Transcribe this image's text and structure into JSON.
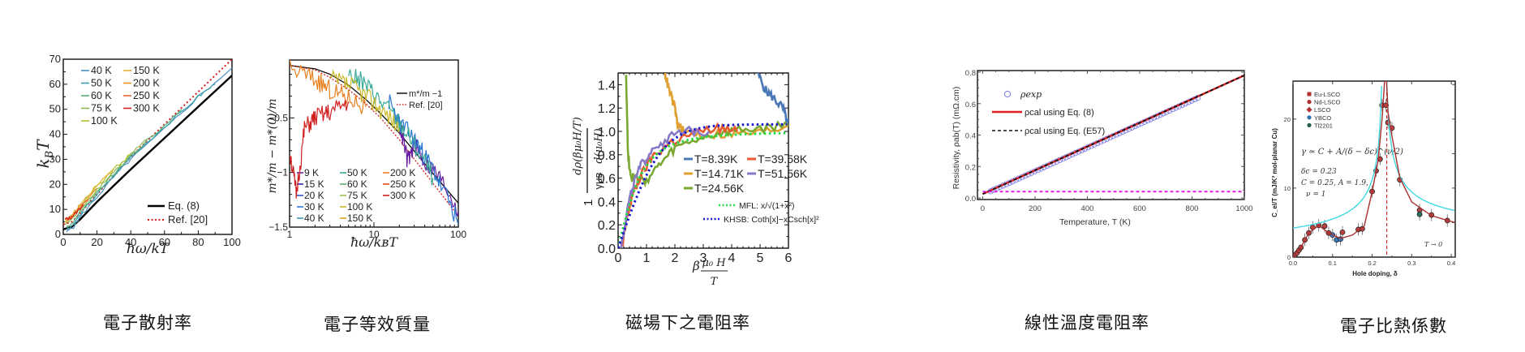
{
  "captions": [
    "電子散射率",
    "電子等效質量",
    "磁場下之電阻率",
    "線性溫度電阻率",
    "電子比熱係數"
  ],
  "chart_data": [
    {
      "type": "line",
      "id": "scattering-rate",
      "title": "",
      "xlabel": "ħω/k_BT",
      "ylabel": "k_BT",
      "xlim": [
        0,
        100
      ],
      "ylim": [
        0,
        70
      ],
      "xticks": [
        0,
        20,
        40,
        60,
        80,
        100
      ],
      "yticks": [
        0,
        10,
        20,
        30,
        40,
        50,
        60,
        70
      ],
      "legend_top_left": [
        {
          "name": "40 K",
          "color": "#4a8fc0"
        },
        {
          "name": "50 K",
          "color": "#3aa0a8"
        },
        {
          "name": "60 K",
          "color": "#5aae7a"
        },
        {
          "name": "75 K",
          "color": "#8cb84a"
        },
        {
          "name": "100 K",
          "color": "#b8c030"
        },
        {
          "name": "150 K",
          "color": "#e0b030"
        },
        {
          "name": "200 K",
          "color": "#e89020"
        },
        {
          "name": "250 K",
          "color": "#e06a30"
        },
        {
          "name": "300 K",
          "color": "#d42020"
        }
      ],
      "legend_bottom_right": [
        {
          "name": "Eq. (8)",
          "color": "#000000",
          "style": "solid"
        },
        {
          "name": "Ref. [20]",
          "color": "#d42020",
          "style": "dotted"
        }
      ],
      "series": [
        {
          "name": "Eq. (8)",
          "x": [
            0,
            5,
            10,
            20,
            30,
            40,
            60,
            80,
            100
          ],
          "y": [
            2,
            3,
            6,
            13,
            19.5,
            26,
            38.5,
            51,
            63.5
          ]
        },
        {
          "name": "Ref. [20]",
          "x": [
            0,
            5,
            10,
            20,
            30,
            40,
            60,
            80,
            100
          ],
          "y": [
            4,
            5,
            8.5,
            16,
            23.5,
            31,
            44,
            57,
            70
          ]
        },
        {
          "name": "40 K",
          "x": [
            2,
            6,
            10,
            20,
            30,
            40,
            60,
            80,
            100
          ],
          "y": [
            1,
            3,
            7,
            15,
            23,
            30,
            42,
            55,
            66.5
          ]
        },
        {
          "name": "50 K",
          "x": [
            2,
            6,
            10,
            20,
            30,
            40,
            60,
            80,
            90
          ],
          "y": [
            2,
            4,
            8,
            16,
            23.5,
            31,
            43,
            55,
            60
          ]
        },
        {
          "name": "60 K",
          "x": [
            2,
            6,
            10,
            20,
            30,
            40,
            60,
            70
          ],
          "y": [
            3,
            5,
            9,
            17,
            24,
            31.5,
            43.5,
            50
          ]
        },
        {
          "name": "75 K",
          "x": [
            1,
            5,
            10,
            20,
            30,
            40,
            50
          ],
          "y": [
            4,
            6,
            10,
            18,
            25,
            32,
            38
          ]
        },
        {
          "name": "100 K",
          "x": [
            1,
            5,
            10,
            20,
            30,
            40
          ],
          "y": [
            5,
            7,
            11,
            19,
            26,
            32
          ]
        },
        {
          "name": "150 K",
          "x": [
            1,
            5,
            10,
            20,
            30
          ],
          "y": [
            5,
            7.5,
            12,
            20,
            26
          ]
        },
        {
          "name": "200 K",
          "x": [
            1,
            5,
            10,
            20
          ],
          "y": [
            5.5,
            7,
            11,
            18.5
          ]
        },
        {
          "name": "250 K",
          "x": [
            1,
            5,
            10,
            15
          ],
          "y": [
            6,
            7,
            10.5,
            14
          ]
        },
        {
          "name": "300 K",
          "x": [
            1,
            4,
            8,
            12
          ],
          "y": [
            6,
            6.5,
            9,
            12
          ]
        }
      ]
    },
    {
      "type": "line",
      "id": "effective-mass",
      "title": "",
      "xlabel": "ħω/k_BT",
      "ylabel": "m*/m − m*(0)/m",
      "xscale": "log",
      "xlim": [
        1,
        100
      ],
      "ylim": [
        -1.5,
        0
      ],
      "xticks": [
        1,
        10,
        100
      ],
      "yticks": [
        -0.5,
        -1,
        -1.5
      ],
      "legend_bottom_left": [
        {
          "name": "9 K",
          "color": "#6a1fa0"
        },
        {
          "name": "15 K",
          "color": "#2a2aa8"
        },
        {
          "name": "20 K",
          "color": "#3850c8"
        },
        {
          "name": "30 K",
          "color": "#2a78d0"
        },
        {
          "name": "40 K",
          "color": "#3a9ab8"
        },
        {
          "name": "50 K",
          "color": "#3aaa98"
        },
        {
          "name": "60 K",
          "color": "#5ab070"
        },
        {
          "name": "75 K",
          "color": "#98c050"
        },
        {
          "name": "100 K",
          "color": "#c8b828"
        },
        {
          "name": "150 K",
          "color": "#e0a028"
        },
        {
          "name": "200 K",
          "color": "#e88020"
        },
        {
          "name": "250 K",
          "color": "#e05020"
        },
        {
          "name": "300 K",
          "color": "#d02020"
        }
      ],
      "legend_top_right": [
        {
          "name": "m*/m −1",
          "color": "#000000",
          "style": "solid"
        },
        {
          "name": "Ref. [20]",
          "color": "#d42020",
          "style": "dotted"
        }
      ],
      "series": [
        {
          "name": "m*/m −1",
          "x": [
            1,
            2,
            3,
            5,
            8,
            12,
            20,
            40,
            100
          ],
          "y": [
            -0.02,
            -0.05,
            -0.1,
            -0.2,
            -0.33,
            -0.46,
            -0.64,
            -0.92,
            -1.28
          ]
        },
        {
          "name": "Ref. [20]",
          "x": [
            1,
            2,
            3,
            5,
            8,
            12,
            20,
            40,
            100
          ],
          "y": [
            -0.02,
            -0.06,
            -0.13,
            -0.24,
            -0.37,
            -0.5,
            -0.7,
            -1.0,
            -1.4
          ]
        },
        {
          "name": "9 K",
          "x": [
            20,
            25,
            30,
            40,
            60,
            100
          ],
          "y": [
            -0.55,
            -0.9,
            -0.75,
            -0.9,
            -1.05,
            -1.35
          ]
        },
        {
          "name": "30 K",
          "x": [
            15,
            20,
            30,
            40,
            60,
            100
          ],
          "y": [
            -0.35,
            -0.55,
            -0.7,
            -0.85,
            -1.1,
            -1.48
          ]
        },
        {
          "name": "50 K",
          "x": [
            5,
            8,
            12,
            20,
            30,
            50
          ],
          "y": [
            -0.1,
            -0.2,
            -0.35,
            -0.55,
            -0.75,
            -1.05
          ]
        },
        {
          "name": "100 K",
          "x": [
            3,
            5,
            8,
            12,
            20
          ],
          "y": [
            -0.15,
            -0.2,
            -0.3,
            -0.42,
            -0.6
          ]
        },
        {
          "name": "200 K",
          "x": [
            1,
            2,
            3,
            5,
            8
          ],
          "y": [
            -0.05,
            -0.15,
            -0.25,
            -0.32,
            -0.4
          ]
        },
        {
          "name": "300 K",
          "x": [
            1,
            1.2,
            1.5,
            2,
            3,
            5
          ],
          "y": [
            -0.8,
            -1.2,
            -0.6,
            -0.5,
            -0.45,
            -0.35
          ]
        }
      ]
    },
    {
      "type": "line",
      "id": "magnetoresistivity",
      "title": "",
      "xlabel": "βμ₀H/T",
      "ylabel": "1/(γμ_B) · dρ(βμ₀H/T)/d(μ₀H)",
      "xlim": [
        0,
        6
      ],
      "ylim": [
        0,
        1.5
      ],
      "xticks": [
        0,
        1,
        2,
        3,
        4,
        5,
        6
      ],
      "yticks": [
        0.0,
        0.2,
        0.4,
        0.6,
        0.8,
        1.0,
        1.2,
        1.4
      ],
      "legend": [
        {
          "name": "T=8.39K",
          "color": "#4a78b8"
        },
        {
          "name": "T=14.71K",
          "color": "#e0a030"
        },
        {
          "name": "T=24.56K",
          "color": "#7aa830"
        },
        {
          "name": "T=39.58K",
          "color": "#e85a30"
        },
        {
          "name": "T=51.56K",
          "color": "#8878c8"
        },
        {
          "name": "MFL: x/√(1+x²)",
          "color": "#22dd44",
          "style": "dotted"
        },
        {
          "name": "KHSB: Coth[x]−xCsch[x]²",
          "color": "#1a1ad0",
          "style": "dotted"
        }
      ],
      "series": [
        {
          "name": "T=8.39K",
          "x": [
            4.9,
            5.2,
            5.5,
            5.8,
            6.0
          ],
          "y": [
            1.5,
            1.35,
            1.28,
            1.2,
            1.05
          ]
        },
        {
          "name": "T=14.71K",
          "x": [
            1.65,
            1.8,
            2.0,
            2.1,
            2.3,
            3,
            4,
            5,
            6
          ],
          "y": [
            1.5,
            1.35,
            1.2,
            1.05,
            1.0,
            0.97,
            0.98,
            0.99,
            1.05
          ]
        },
        {
          "name": "T=24.56K",
          "x": [
            0.28,
            0.35,
            0.45,
            0.6,
            1.0,
            1.5,
            2,
            3,
            4,
            5,
            6
          ],
          "y": [
            1.5,
            0.8,
            0.62,
            0.6,
            0.58,
            0.72,
            0.85,
            0.95,
            1.0,
            1.02,
            1.05
          ]
        },
        {
          "name": "T=39.58K",
          "x": [
            0.15,
            0.3,
            0.5,
            0.8,
            1.2,
            1.8,
            2.5,
            3.5,
            4.2
          ],
          "y": [
            0,
            0.25,
            0.45,
            0.62,
            0.78,
            0.9,
            0.97,
            1.03,
            1.0
          ]
        },
        {
          "name": "T=51.56K",
          "x": [
            0.1,
            0.3,
            0.5,
            0.8,
            1.2,
            1.8,
            2.5,
            3.2
          ],
          "y": [
            0,
            0.3,
            0.52,
            0.7,
            0.85,
            0.95,
            1.0,
            1.0
          ]
        },
        {
          "name": "MFL: x/√(1+x²)",
          "function": "mfl",
          "xrange": [
            0,
            6
          ]
        },
        {
          "name": "KHSB: Coth[x]−xCsch[x]²",
          "function": "khsb",
          "xrange": [
            0,
            6
          ]
        }
      ]
    },
    {
      "type": "line",
      "id": "linear-resistivity",
      "title": "",
      "xlabel": "Temperature, T (K)",
      "ylabel": "Resistivity, ρ_ab(T) (mΩ.cm)",
      "xlim": [
        0,
        1000
      ],
      "ylim": [
        0,
        0.8
      ],
      "xticks": [
        0,
        200,
        400,
        600,
        800,
        1000
      ],
      "yticks": [
        0.0,
        0.2,
        0.4,
        0.6,
        0.8
      ],
      "legend": [
        {
          "name": "ρ_exp",
          "color": "#6a6ae0",
          "style": "circle"
        },
        {
          "name": "ρ_cal using Eq. (8)",
          "color": "#e02020",
          "style": "solid"
        },
        {
          "name": "ρ_cal using Eq. (E57)",
          "color": "#000000",
          "style": "dashed"
        }
      ],
      "series": [
        {
          "name": "ρ_exp",
          "x_range": [
            30,
            830
          ],
          "slope": 0.00075,
          "intercept": 0.02
        },
        {
          "name": "ρ_cal using Eq. (8)",
          "x": [
            0,
            1000
          ],
          "y": [
            0.025,
            0.78
          ]
        },
        {
          "name": "ρ_cal using Eq. (E57)",
          "x": [
            0,
            1000
          ],
          "y": [
            0.025,
            0.78
          ]
        },
        {
          "name": "residual",
          "x": [
            0,
            1000
          ],
          "y": [
            0.04,
            0.04
          ],
          "color": "#e020e0",
          "style": "dashed"
        }
      ]
    },
    {
      "type": "scatter",
      "id": "specific-heat",
      "title": "",
      "xlabel": "Hole doping, δ",
      "ylabel": "C_el/T (mJ/K² mol-planar Cu)",
      "xlim": [
        0,
        0.4
      ],
      "ylim": [
        0,
        25
      ],
      "xticks": [
        0.0,
        0.1,
        0.2,
        0.3,
        0.4
      ],
      "yticks": [
        0,
        10,
        20
      ],
      "legend": [
        {
          "name": "Eu-LSCO",
          "color": "#b03030",
          "marker": "square"
        },
        {
          "name": "Nd-LSCO",
          "color": "#b03030",
          "marker": "circle"
        },
        {
          "name": "LSCO",
          "color": "#b03030",
          "marker": "diamond"
        },
        {
          "name": "YBCO",
          "color": "#3070b0",
          "marker": "circle"
        },
        {
          "name": "Tl2201",
          "color": "#2a6050",
          "marker": "circle"
        }
      ],
      "annotations": [
        "γ ≃ C + A/(δ − δc)^(ν/2)",
        "δc = 0.23",
        "C = 0.25, A = 1.9,",
        "ν = 1",
        "T → 0"
      ],
      "critical_doping": 0.23,
      "points": [
        {
          "x": 0.005,
          "y": 0.3
        },
        {
          "x": 0.01,
          "y": 0.6
        },
        {
          "x": 0.015,
          "y": 1
        },
        {
          "x": 0.02,
          "y": 1.4
        },
        {
          "x": 0.03,
          "y": 2.5
        },
        {
          "x": 0.04,
          "y": 3.5
        },
        {
          "x": 0.05,
          "y": 4.3
        },
        {
          "x": 0.065,
          "y": 4.6
        },
        {
          "x": 0.08,
          "y": 4.5
        },
        {
          "x": 0.09,
          "y": 3.5
        },
        {
          "x": 0.1,
          "y": 3.2,
          "set": "YBCO"
        },
        {
          "x": 0.11,
          "y": 2.5,
          "set": "YBCO"
        },
        {
          "x": 0.12,
          "y": 2.6,
          "set": "YBCO"
        },
        {
          "x": 0.125,
          "y": 3.6
        },
        {
          "x": 0.165,
          "y": 4
        },
        {
          "x": 0.175,
          "y": 4.1
        },
        {
          "x": 0.2,
          "y": 9.5
        },
        {
          "x": 0.21,
          "y": 12.5
        },
        {
          "x": 0.22,
          "y": 14.2
        },
        {
          "x": 0.225,
          "y": 22
        },
        {
          "x": 0.235,
          "y": 22
        },
        {
          "x": 0.24,
          "y": 19.5
        },
        {
          "x": 0.25,
          "y": 18.7
        },
        {
          "x": 0.27,
          "y": 11.2
        },
        {
          "x": 0.32,
          "y": 6.8
        },
        {
          "x": 0.32,
          "y": 6.2,
          "set": "Tl2201"
        },
        {
          "x": 0.35,
          "y": 6.1
        },
        {
          "x": 0.39,
          "y": 5.3
        }
      ]
    }
  ]
}
